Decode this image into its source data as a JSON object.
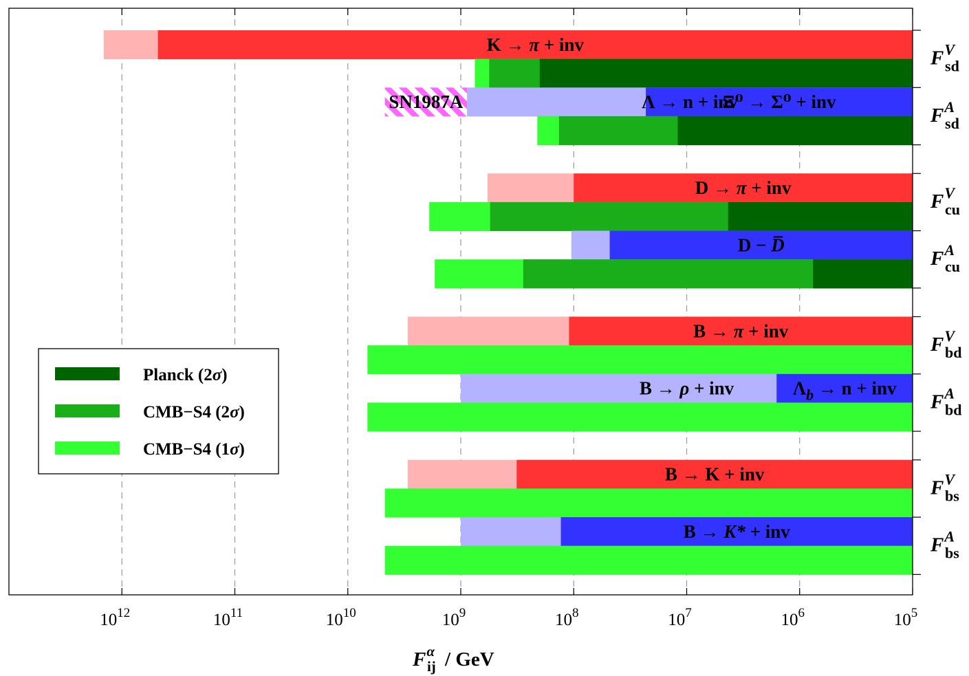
{
  "chart_data": {
    "type": "bar",
    "orientation": "horizontal",
    "xscale": "log",
    "x_reversed": true,
    "xlim": [
      10000000000000.0,
      100000.0
    ],
    "xlabel": {
      "base": "F",
      "sup": "α",
      "sub": "ij",
      "unit": "/ GeV"
    },
    "xticks": [
      {
        "value": 1000000000000.0,
        "base": "10",
        "exp": "12"
      },
      {
        "value": 100000000000.0,
        "base": "10",
        "exp": "11"
      },
      {
        "value": 10000000000.0,
        "base": "10",
        "exp": "10"
      },
      {
        "value": 1000000000.0,
        "base": "10",
        "exp": "9"
      },
      {
        "value": 100000000.0,
        "base": "10",
        "exp": "8"
      },
      {
        "value": 10000000.0,
        "base": "10",
        "exp": "7"
      },
      {
        "value": 1000000.0,
        "base": "10",
        "exp": "6"
      },
      {
        "value": 100000.0,
        "base": "10",
        "exp": "5"
      }
    ],
    "grid": "vertical-dashed",
    "legend": {
      "position": "left",
      "entries": [
        {
          "name": "Planck (2σ)",
          "color": "#006400"
        },
        {
          "name": "CMB−S4 (2σ)",
          "color": "#1aaf1a"
        },
        {
          "name": "CMB−S4 (1σ)",
          "color": "#33ff33"
        }
      ]
    },
    "colors": {
      "exp_red": "#ff3333",
      "exp_red_light": "#ffb3b3",
      "exp_blue": "#3333ff",
      "exp_blue_light": "#b3b3ff",
      "planck": "#006400",
      "cmb2": "#1aaf1a",
      "cmb1": "#33ff33",
      "sn_magenta": "#ff66ff"
    },
    "groups": [
      {
        "base": "F",
        "sup": "V",
        "sub": "sd",
        "row": 0
      },
      {
        "base": "F",
        "sup": "A",
        "sub": "sd",
        "row": 2
      },
      {
        "base": "F",
        "sup": "V",
        "sub": "cu",
        "row": 5
      },
      {
        "base": "F",
        "sup": "A",
        "sub": "cu",
        "row": 7
      },
      {
        "base": "F",
        "sup": "V",
        "sub": "bd",
        "row": 10
      },
      {
        "base": "F",
        "sup": "A",
        "sub": "bd",
        "row": 12
      },
      {
        "base": "F",
        "sup": "V",
        "sub": "bs",
        "row": 15
      },
      {
        "base": "F",
        "sup": "A",
        "sub": "bs",
        "row": 17
      }
    ],
    "bars": [
      {
        "row": 0,
        "from": 1450000000000.0,
        "to": 100000.0,
        "color": "exp_red_light"
      },
      {
        "row": 0,
        "from": 480000000000.0,
        "to": 100000.0,
        "color": "exp_red",
        "label": {
          "pre": "K → ",
          "it": "π",
          "post": " + inv"
        }
      },
      {
        "row": 1,
        "from": 750000000.0,
        "to": 100000.0,
        "color": "cmb1"
      },
      {
        "row": 1,
        "from": 560000000.0,
        "to": 100000.0,
        "color": "cmb2"
      },
      {
        "row": 1,
        "from": 200000000.0,
        "to": 100000.0,
        "color": "planck"
      },
      {
        "row": 2,
        "from": 4700000000.0,
        "to": 880000000.0,
        "color": "sn_magenta",
        "hatch": true,
        "label": {
          "pre": "SN1987A",
          "it": "",
          "post": ""
        }
      },
      {
        "row": 2,
        "from": 880000000.0,
        "to": 100000.0,
        "color": "exp_blue_light",
        "label": {
          "pre": "Λ → n + inv",
          "it": "",
          "post": ""
        }
      },
      {
        "row": 2,
        "from": 23000000.0,
        "to": 100000.0,
        "color": "exp_blue",
        "label": {
          "pre": "Ξ⁰ → Σ⁰ + inv",
          "it": "",
          "post": ""
        }
      },
      {
        "row": 3,
        "from": 210000000.0,
        "to": 100000.0,
        "color": "cmb1"
      },
      {
        "row": 3,
        "from": 135000000.0,
        "to": 100000.0,
        "color": "cmb2"
      },
      {
        "row": 3,
        "from": 12000000.0,
        "to": 100000.0,
        "color": "planck"
      },
      {
        "row": 5,
        "from": 580000000.0,
        "to": 100000.0,
        "color": "exp_red_light"
      },
      {
        "row": 5,
        "from": 100000000.0,
        "to": 100000.0,
        "color": "exp_red",
        "label": {
          "pre": "D → ",
          "it": "π",
          "post": " + inv"
        }
      },
      {
        "row": 6,
        "from": 1900000000.0,
        "to": 100000.0,
        "color": "cmb1"
      },
      {
        "row": 6,
        "from": 550000000.0,
        "to": 100000.0,
        "color": "cmb2"
      },
      {
        "row": 6,
        "from": 4300000.0,
        "to": 100000.0,
        "color": "planck"
      },
      {
        "row": 7,
        "from": 105000000.0,
        "to": 100000.0,
        "color": "exp_blue_light"
      },
      {
        "row": 7,
        "from": 48000000.0,
        "to": 100000.0,
        "color": "exp_blue",
        "label": {
          "pre": "D − ",
          "it": "D̅",
          "post": ""
        }
      },
      {
        "row": 8,
        "from": 1700000000.0,
        "to": 100000.0,
        "color": "cmb1"
      },
      {
        "row": 8,
        "from": 280000000.0,
        "to": 100000.0,
        "color": "cmb2"
      },
      {
        "row": 8,
        "from": 760000.0,
        "to": 100000.0,
        "color": "planck"
      },
      {
        "row": 10,
        "from": 2950000000.0,
        "to": 100000.0,
        "color": "exp_red_light"
      },
      {
        "row": 10,
        "from": 110000000.0,
        "to": 100000.0,
        "color": "exp_red",
        "label": {
          "pre": "B → ",
          "it": "π",
          "post": " + inv"
        }
      },
      {
        "row": 11,
        "from": 6700000000.0,
        "to": 100000.0,
        "color": "cmb1"
      },
      {
        "row": 12,
        "from": 1000000000.0,
        "to": 100000.0,
        "color": "exp_blue_light",
        "label": {
          "pre": "B → ",
          "it": "ρ",
          "post": " + inv"
        }
      },
      {
        "row": 12,
        "from": 1600000.0,
        "to": 100000.0,
        "color": "exp_blue",
        "label": {
          "pre": "Λ",
          "it": "b",
          "post": " → n + inv",
          "sub_it": true
        }
      },
      {
        "row": 13,
        "from": 6700000000.0,
        "to": 100000.0,
        "color": "cmb1"
      },
      {
        "row": 15,
        "from": 2950000000.0,
        "to": 100000.0,
        "color": "exp_red_light"
      },
      {
        "row": 15,
        "from": 320000000.0,
        "to": 100000.0,
        "color": "exp_red",
        "label": {
          "pre": "B → K + inv",
          "it": "",
          "post": ""
        }
      },
      {
        "row": 16,
        "from": 4700000000.0,
        "to": 100000.0,
        "color": "cmb1"
      },
      {
        "row": 17,
        "from": 1000000000.0,
        "to": 100000.0,
        "color": "exp_blue_light"
      },
      {
        "row": 17,
        "from": 130000000.0,
        "to": 100000.0,
        "color": "exp_blue",
        "label": {
          "pre": "B → ",
          "it": "K*",
          "post": " + inv"
        }
      },
      {
        "row": 18,
        "from": 4700000000.0,
        "to": 100000.0,
        "color": "cmb1"
      }
    ]
  }
}
